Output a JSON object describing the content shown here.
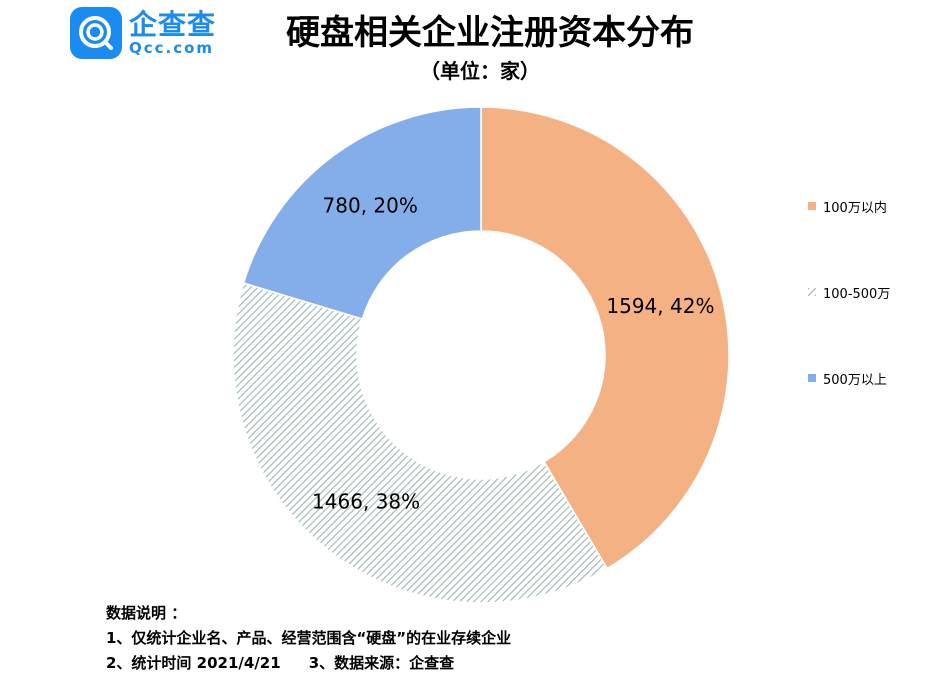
{
  "header": {
    "logo_cn": "企查查",
    "logo_en": "Qcc.com",
    "title": "硬盘相关企业注册资本分布",
    "subtitle": "（单位：家）"
  },
  "colors": {
    "brand": "#1a8bf0",
    "s1": "#f4b183",
    "s2_stripe": "#9fb4b4",
    "s3": "#84aeea"
  },
  "chart_data": {
    "type": "pie",
    "variant": "donut",
    "title": "硬盘相关企业注册资本分布",
    "unit_label": "（单位：家）",
    "categories": [
      "100万以内",
      "100-500万",
      "500万以上"
    ],
    "values": [
      1594,
      1466,
      780
    ],
    "percents": [
      42,
      38,
      20
    ],
    "data_labels": [
      "1594, 42%",
      "1466, 38%",
      "780, 20%"
    ],
    "legend_position": "right",
    "start_angle": "12 o'clock, clockwise"
  },
  "notes": {
    "heading": "数据说明 ：",
    "line1": "1、仅统计企业名、产品、经营范围含“硬盘”的在业存续企业",
    "line2a": "2、统计时间  2021/4/21",
    "line2b": "3、数据来源：企查查"
  }
}
